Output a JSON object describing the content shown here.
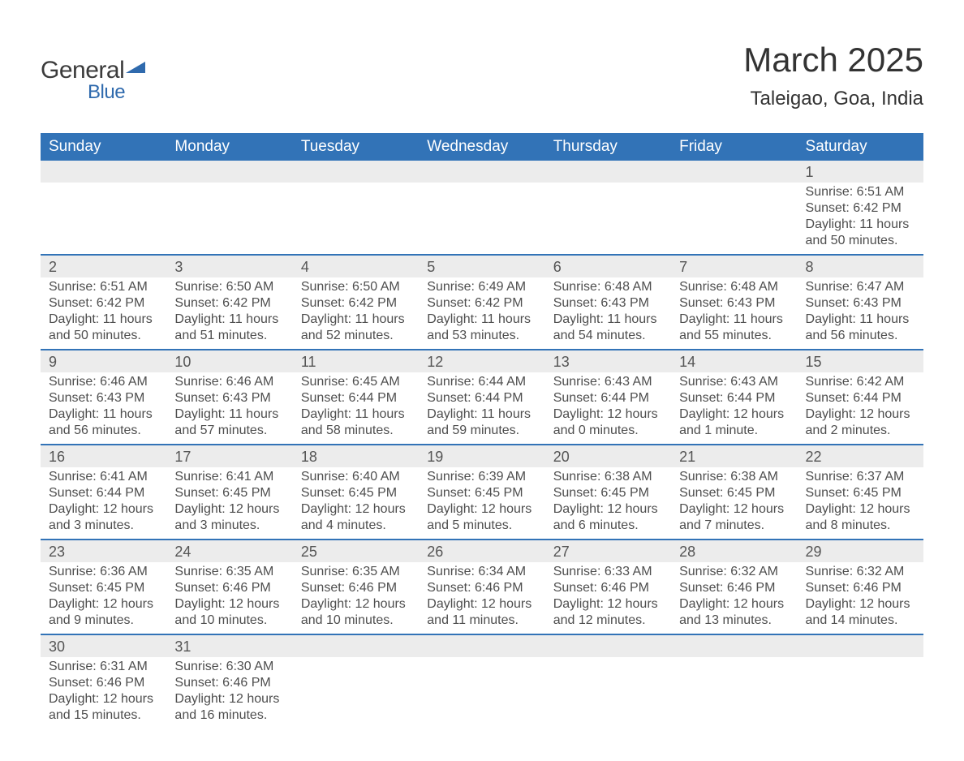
{
  "logo": {
    "text1": "General",
    "text2": "Blue",
    "shape_color": "#2f6aad"
  },
  "title": {
    "month": "March 2025",
    "location": "Taleigao, Goa, India"
  },
  "colors": {
    "header_bg": "#3273b7",
    "header_text": "#ffffff",
    "daynum_bg": "#ececec",
    "row_border": "#3273b7",
    "body_text": "#4e4e4e"
  },
  "weekdays": [
    "Sunday",
    "Monday",
    "Tuesday",
    "Wednesday",
    "Thursday",
    "Friday",
    "Saturday"
  ],
  "weeks": [
    [
      null,
      null,
      null,
      null,
      null,
      null,
      {
        "n": "1",
        "sr": "Sunrise: 6:51 AM",
        "ss": "Sunset: 6:42 PM",
        "dl": "Daylight: 11 hours and 50 minutes."
      }
    ],
    [
      {
        "n": "2",
        "sr": "Sunrise: 6:51 AM",
        "ss": "Sunset: 6:42 PM",
        "dl": "Daylight: 11 hours and 50 minutes."
      },
      {
        "n": "3",
        "sr": "Sunrise: 6:50 AM",
        "ss": "Sunset: 6:42 PM",
        "dl": "Daylight: 11 hours and 51 minutes."
      },
      {
        "n": "4",
        "sr": "Sunrise: 6:50 AM",
        "ss": "Sunset: 6:42 PM",
        "dl": "Daylight: 11 hours and 52 minutes."
      },
      {
        "n": "5",
        "sr": "Sunrise: 6:49 AM",
        "ss": "Sunset: 6:42 PM",
        "dl": "Daylight: 11 hours and 53 minutes."
      },
      {
        "n": "6",
        "sr": "Sunrise: 6:48 AM",
        "ss": "Sunset: 6:43 PM",
        "dl": "Daylight: 11 hours and 54 minutes."
      },
      {
        "n": "7",
        "sr": "Sunrise: 6:48 AM",
        "ss": "Sunset: 6:43 PM",
        "dl": "Daylight: 11 hours and 55 minutes."
      },
      {
        "n": "8",
        "sr": "Sunrise: 6:47 AM",
        "ss": "Sunset: 6:43 PM",
        "dl": "Daylight: 11 hours and 56 minutes."
      }
    ],
    [
      {
        "n": "9",
        "sr": "Sunrise: 6:46 AM",
        "ss": "Sunset: 6:43 PM",
        "dl": "Daylight: 11 hours and 56 minutes."
      },
      {
        "n": "10",
        "sr": "Sunrise: 6:46 AM",
        "ss": "Sunset: 6:43 PM",
        "dl": "Daylight: 11 hours and 57 minutes."
      },
      {
        "n": "11",
        "sr": "Sunrise: 6:45 AM",
        "ss": "Sunset: 6:44 PM",
        "dl": "Daylight: 11 hours and 58 minutes."
      },
      {
        "n": "12",
        "sr": "Sunrise: 6:44 AM",
        "ss": "Sunset: 6:44 PM",
        "dl": "Daylight: 11 hours and 59 minutes."
      },
      {
        "n": "13",
        "sr": "Sunrise: 6:43 AM",
        "ss": "Sunset: 6:44 PM",
        "dl": "Daylight: 12 hours and 0 minutes."
      },
      {
        "n": "14",
        "sr": "Sunrise: 6:43 AM",
        "ss": "Sunset: 6:44 PM",
        "dl": "Daylight: 12 hours and 1 minute."
      },
      {
        "n": "15",
        "sr": "Sunrise: 6:42 AM",
        "ss": "Sunset: 6:44 PM",
        "dl": "Daylight: 12 hours and 2 minutes."
      }
    ],
    [
      {
        "n": "16",
        "sr": "Sunrise: 6:41 AM",
        "ss": "Sunset: 6:44 PM",
        "dl": "Daylight: 12 hours and 3 minutes."
      },
      {
        "n": "17",
        "sr": "Sunrise: 6:41 AM",
        "ss": "Sunset: 6:45 PM",
        "dl": "Daylight: 12 hours and 3 minutes."
      },
      {
        "n": "18",
        "sr": "Sunrise: 6:40 AM",
        "ss": "Sunset: 6:45 PM",
        "dl": "Daylight: 12 hours and 4 minutes."
      },
      {
        "n": "19",
        "sr": "Sunrise: 6:39 AM",
        "ss": "Sunset: 6:45 PM",
        "dl": "Daylight: 12 hours and 5 minutes."
      },
      {
        "n": "20",
        "sr": "Sunrise: 6:38 AM",
        "ss": "Sunset: 6:45 PM",
        "dl": "Daylight: 12 hours and 6 minutes."
      },
      {
        "n": "21",
        "sr": "Sunrise: 6:38 AM",
        "ss": "Sunset: 6:45 PM",
        "dl": "Daylight: 12 hours and 7 minutes."
      },
      {
        "n": "22",
        "sr": "Sunrise: 6:37 AM",
        "ss": "Sunset: 6:45 PM",
        "dl": "Daylight: 12 hours and 8 minutes."
      }
    ],
    [
      {
        "n": "23",
        "sr": "Sunrise: 6:36 AM",
        "ss": "Sunset: 6:45 PM",
        "dl": "Daylight: 12 hours and 9 minutes."
      },
      {
        "n": "24",
        "sr": "Sunrise: 6:35 AM",
        "ss": "Sunset: 6:46 PM",
        "dl": "Daylight: 12 hours and 10 minutes."
      },
      {
        "n": "25",
        "sr": "Sunrise: 6:35 AM",
        "ss": "Sunset: 6:46 PM",
        "dl": "Daylight: 12 hours and 10 minutes."
      },
      {
        "n": "26",
        "sr": "Sunrise: 6:34 AM",
        "ss": "Sunset: 6:46 PM",
        "dl": "Daylight: 12 hours and 11 minutes."
      },
      {
        "n": "27",
        "sr": "Sunrise: 6:33 AM",
        "ss": "Sunset: 6:46 PM",
        "dl": "Daylight: 12 hours and 12 minutes."
      },
      {
        "n": "28",
        "sr": "Sunrise: 6:32 AM",
        "ss": "Sunset: 6:46 PM",
        "dl": "Daylight: 12 hours and 13 minutes."
      },
      {
        "n": "29",
        "sr": "Sunrise: 6:32 AM",
        "ss": "Sunset: 6:46 PM",
        "dl": "Daylight: 12 hours and 14 minutes."
      }
    ],
    [
      {
        "n": "30",
        "sr": "Sunrise: 6:31 AM",
        "ss": "Sunset: 6:46 PM",
        "dl": "Daylight: 12 hours and 15 minutes."
      },
      {
        "n": "31",
        "sr": "Sunrise: 6:30 AM",
        "ss": "Sunset: 6:46 PM",
        "dl": "Daylight: 12 hours and 16 minutes."
      },
      null,
      null,
      null,
      null,
      null
    ]
  ]
}
